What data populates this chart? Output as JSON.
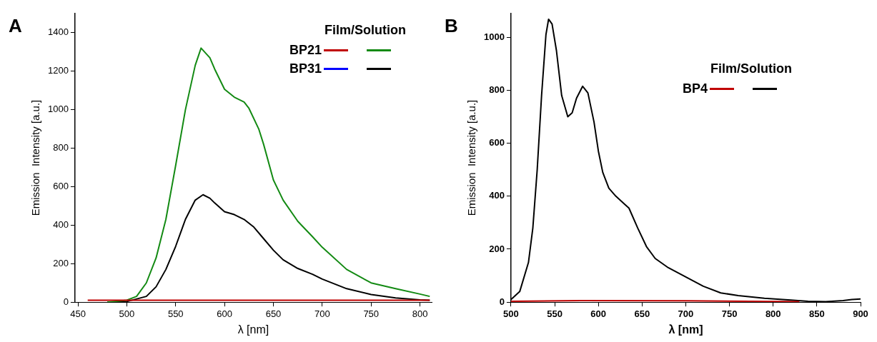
{
  "chart_data": [
    {
      "type": "line",
      "title": "A",
      "xlabel": "λ [nm]",
      "ylabel": "Emission  Intensity [a.u.]",
      "legend_title": "Film/Solution",
      "legend": "top right",
      "xlim": [
        447,
        812
      ],
      "xticks": [
        450,
        500,
        550,
        600,
        650,
        700,
        750,
        800
      ],
      "ylim": [
        0,
        1500
      ],
      "yticks": [
        0,
        200,
        400,
        600,
        800,
        1000,
        1200,
        1400
      ],
      "grid": false,
      "marker": "none",
      "line_style": "solid",
      "series": [
        {
          "name": "BP21",
          "color": "#c00000",
          "x": [
            460,
            530,
            600,
            700,
            810
          ],
          "values": [
            10,
            10,
            10,
            10,
            10
          ]
        },
        {
          "color": "#138a13",
          "x": [
            480,
            500,
            510,
            520,
            530,
            540,
            550,
            560,
            570,
            576,
            585,
            590,
            600,
            610,
            620,
            625,
            635,
            640,
            650,
            660,
            675,
            690,
            700,
            725,
            750,
            775,
            800,
            810
          ],
          "values": [
            0,
            10,
            30,
            100,
            230,
            430,
            710,
            1000,
            1230,
            1320,
            1270,
            1210,
            1106,
            1065,
            1040,
            1007,
            900,
            820,
            635,
            530,
            420,
            340,
            285,
            170,
            100,
            70,
            42,
            30
          ]
        },
        {
          "name": "BP31",
          "color": "#0000ff"
        },
        {
          "color": "#000000",
          "x": [
            480,
            500,
            520,
            530,
            540,
            550,
            560,
            570,
            578,
            585,
            590,
            600,
            610,
            620,
            630,
            640,
            650,
            660,
            675,
            690,
            700,
            725,
            750,
            775,
            800,
            810
          ],
          "values": [
            0,
            3,
            30,
            80,
            170,
            290,
            430,
            530,
            558,
            540,
            515,
            470,
            455,
            430,
            390,
            330,
            270,
            220,
            175,
            145,
            120,
            70,
            40,
            22,
            12,
            10
          ]
        }
      ]
    },
    {
      "type": "line",
      "title": "B",
      "xlabel": "λ [nm]",
      "ylabel": "Emission  Intensity [a.u.]",
      "legend_title": "Film/Solution",
      "legend": "top right",
      "xlim": [
        500,
        900
      ],
      "xticks": [
        500,
        550,
        600,
        650,
        700,
        750,
        800,
        850,
        900
      ],
      "ylim": [
        0,
        1090
      ],
      "yticks": [
        0,
        200,
        400,
        600,
        800,
        1000
      ],
      "grid": false,
      "marker": "none",
      "line_style": "solid",
      "series": [
        {
          "name": "BP4",
          "color": "#c00000",
          "x": [
            500,
            580,
            700,
            830
          ],
          "values": [
            3,
            6,
            5,
            2
          ]
        },
        {
          "color": "#000000",
          "x": [
            500,
            510,
            520,
            525,
            530,
            535,
            540,
            543,
            547,
            552,
            558,
            565,
            570,
            575,
            582,
            588,
            595,
            600,
            605,
            612,
            620,
            630,
            635,
            645,
            655,
            665,
            680,
            700,
            720,
            740,
            760,
            790,
            820,
            840,
            860,
            880,
            890,
            900
          ],
          "values": [
            10,
            40,
            150,
            280,
            500,
            780,
            1010,
            1068,
            1050,
            950,
            780,
            700,
            715,
            770,
            815,
            790,
            680,
            570,
            490,
            430,
            400,
            370,
            355,
            280,
            210,
            165,
            130,
            95,
            60,
            35,
            25,
            15,
            8,
            3,
            2,
            6,
            10,
            12
          ]
        }
      ]
    }
  ]
}
